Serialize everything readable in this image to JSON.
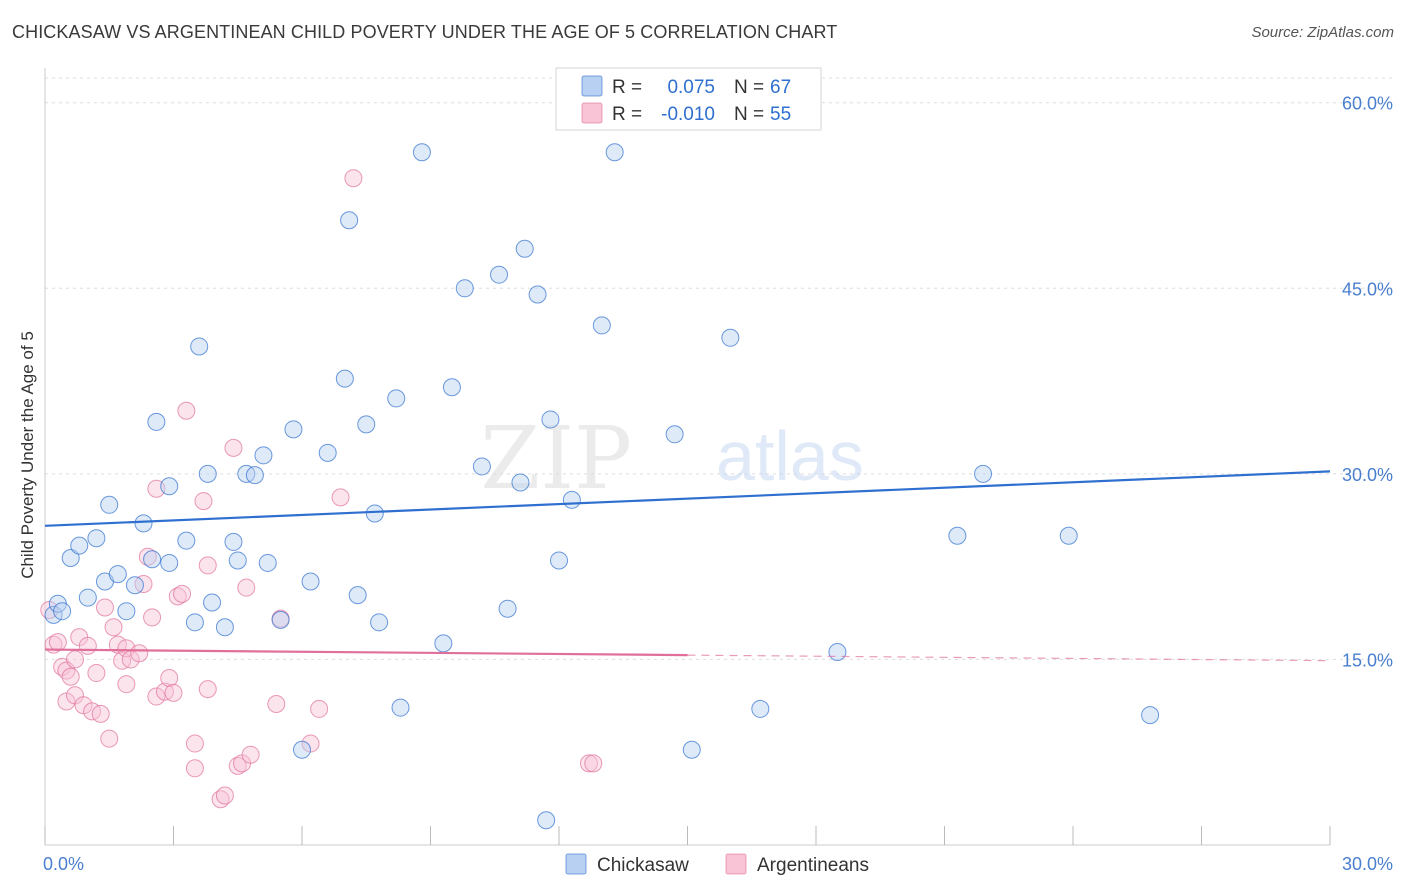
{
  "title": "CHICKASAW VS ARGENTINEAN CHILD POVERTY UNDER THE AGE OF 5 CORRELATION CHART",
  "source": "Source: ZipAtlas.com",
  "watermark": {
    "zip": "ZIP",
    "atlas": "atlas"
  },
  "chart_data": {
    "type": "scatter",
    "xlabel": "",
    "ylabel": "Child Poverty Under the Age of 5",
    "xlim": [
      0,
      30
    ],
    "ylim": [
      0,
      62
    ],
    "x_tick_labels": [
      {
        "value": 0,
        "label": "0.0%"
      },
      {
        "value": 30,
        "label": "30.0%"
      }
    ],
    "y_tick_labels": [
      {
        "value": 15,
        "label": "15.0%"
      },
      {
        "value": 30,
        "label": "30.0%"
      },
      {
        "value": 45,
        "label": "45.0%"
      },
      {
        "value": 60,
        "label": "60.0%"
      }
    ],
    "legend_position": "top-center",
    "series": [
      {
        "name": "Chickasaw",
        "color": "#2e6fcf",
        "fill": "#b8d0f2",
        "R": "0.075",
        "N": "67",
        "r_label": "R =",
        "n_label": "N =",
        "trend": {
          "x0": 0,
          "y0": 25.8,
          "x1": 30,
          "y1": 30.2
        },
        "points": [
          [
            0.2,
            18.6
          ],
          [
            0.3,
            19.5
          ],
          [
            0.4,
            18.9
          ],
          [
            0.6,
            23.2
          ],
          [
            0.8,
            24.2
          ],
          [
            1.0,
            20.0
          ],
          [
            1.2,
            24.8
          ],
          [
            1.4,
            21.3
          ],
          [
            1.5,
            27.5
          ],
          [
            1.7,
            21.9
          ],
          [
            1.9,
            18.9
          ],
          [
            2.1,
            21.0
          ],
          [
            2.3,
            26.0
          ],
          [
            2.5,
            23.1
          ],
          [
            2.6,
            34.2
          ],
          [
            2.9,
            22.8
          ],
          [
            2.9,
            29.0
          ],
          [
            3.3,
            24.6
          ],
          [
            3.5,
            18.0
          ],
          [
            3.6,
            40.3
          ],
          [
            3.8,
            30.0
          ],
          [
            3.9,
            19.6
          ],
          [
            4.2,
            17.6
          ],
          [
            4.4,
            24.5
          ],
          [
            4.5,
            23.0
          ],
          [
            4.7,
            30.0
          ],
          [
            4.9,
            29.9
          ],
          [
            5.1,
            31.5
          ],
          [
            5.2,
            22.8
          ],
          [
            5.5,
            18.2
          ],
          [
            5.8,
            33.6
          ],
          [
            6.0,
            7.7
          ],
          [
            6.2,
            21.3
          ],
          [
            6.6,
            31.7
          ],
          [
            7.0,
            37.7
          ],
          [
            7.1,
            50.5
          ],
          [
            7.3,
            20.2
          ],
          [
            7.5,
            34.0
          ],
          [
            7.7,
            26.8
          ],
          [
            7.8,
            18.0
          ],
          [
            8.2,
            36.1
          ],
          [
            8.3,
            11.1
          ],
          [
            8.8,
            56.0
          ],
          [
            9.3,
            16.3
          ],
          [
            9.5,
            37.0
          ],
          [
            9.8,
            45.0
          ],
          [
            10.2,
            30.6
          ],
          [
            10.6,
            46.1
          ],
          [
            10.8,
            19.1
          ],
          [
            11.1,
            29.3
          ],
          [
            11.2,
            48.2
          ],
          [
            11.5,
            44.5
          ],
          [
            11.7,
            2.0
          ],
          [
            11.8,
            34.4
          ],
          [
            12.0,
            23.0
          ],
          [
            12.3,
            27.9
          ],
          [
            13.0,
            42.0
          ],
          [
            13.3,
            56.0
          ],
          [
            14.7,
            33.2
          ],
          [
            15.1,
            7.7
          ],
          [
            16.0,
            41.0
          ],
          [
            16.7,
            11.0
          ],
          [
            18.5,
            15.6
          ],
          [
            21.3,
            25.0
          ],
          [
            21.9,
            30.0
          ],
          [
            23.9,
            25.0
          ],
          [
            25.8,
            10.5
          ]
        ]
      },
      {
        "name": "Argentineans",
        "color": "#e0709a",
        "fill": "#f8c4d6",
        "R": "-0.010",
        "N": "55",
        "r_label": "R =",
        "n_label": "N =",
        "trend": {
          "x0": 0,
          "y0": 15.8,
          "x1": 30,
          "y1": 14.9,
          "solid_until": 15
        },
        "points": [
          [
            0.1,
            19.0
          ],
          [
            0.2,
            16.2
          ],
          [
            0.3,
            16.4
          ],
          [
            0.4,
            14.4
          ],
          [
            0.5,
            11.6
          ],
          [
            0.5,
            14.1
          ],
          [
            0.6,
            13.6
          ],
          [
            0.7,
            12.1
          ],
          [
            0.7,
            15.0
          ],
          [
            0.8,
            16.8
          ],
          [
            0.9,
            11.3
          ],
          [
            1.0,
            16.1
          ],
          [
            1.1,
            10.8
          ],
          [
            1.2,
            13.9
          ],
          [
            1.3,
            10.6
          ],
          [
            1.4,
            19.2
          ],
          [
            1.5,
            8.6
          ],
          [
            1.6,
            17.6
          ],
          [
            1.7,
            16.2
          ],
          [
            1.8,
            14.9
          ],
          [
            1.9,
            15.9
          ],
          [
            1.9,
            13.0
          ],
          [
            2.0,
            15.0
          ],
          [
            2.2,
            15.5
          ],
          [
            2.3,
            21.1
          ],
          [
            2.4,
            23.3
          ],
          [
            2.5,
            18.4
          ],
          [
            2.6,
            28.8
          ],
          [
            2.6,
            12.0
          ],
          [
            2.8,
            12.4
          ],
          [
            2.9,
            13.5
          ],
          [
            3.0,
            12.3
          ],
          [
            3.1,
            20.1
          ],
          [
            3.2,
            20.3
          ],
          [
            3.3,
            35.1
          ],
          [
            3.5,
            8.2
          ],
          [
            3.5,
            6.2
          ],
          [
            3.7,
            27.8
          ],
          [
            3.8,
            22.6
          ],
          [
            3.8,
            12.6
          ],
          [
            4.1,
            3.7
          ],
          [
            4.2,
            4.0
          ],
          [
            4.4,
            32.1
          ],
          [
            4.5,
            6.4
          ],
          [
            4.6,
            6.6
          ],
          [
            4.7,
            20.8
          ],
          [
            4.8,
            7.3
          ],
          [
            5.4,
            11.4
          ],
          [
            5.5,
            18.3
          ],
          [
            6.2,
            8.2
          ],
          [
            6.4,
            11.0
          ],
          [
            6.9,
            28.1
          ],
          [
            7.2,
            53.9
          ],
          [
            12.7,
            6.6
          ],
          [
            12.8,
            6.6
          ]
        ]
      }
    ]
  }
}
